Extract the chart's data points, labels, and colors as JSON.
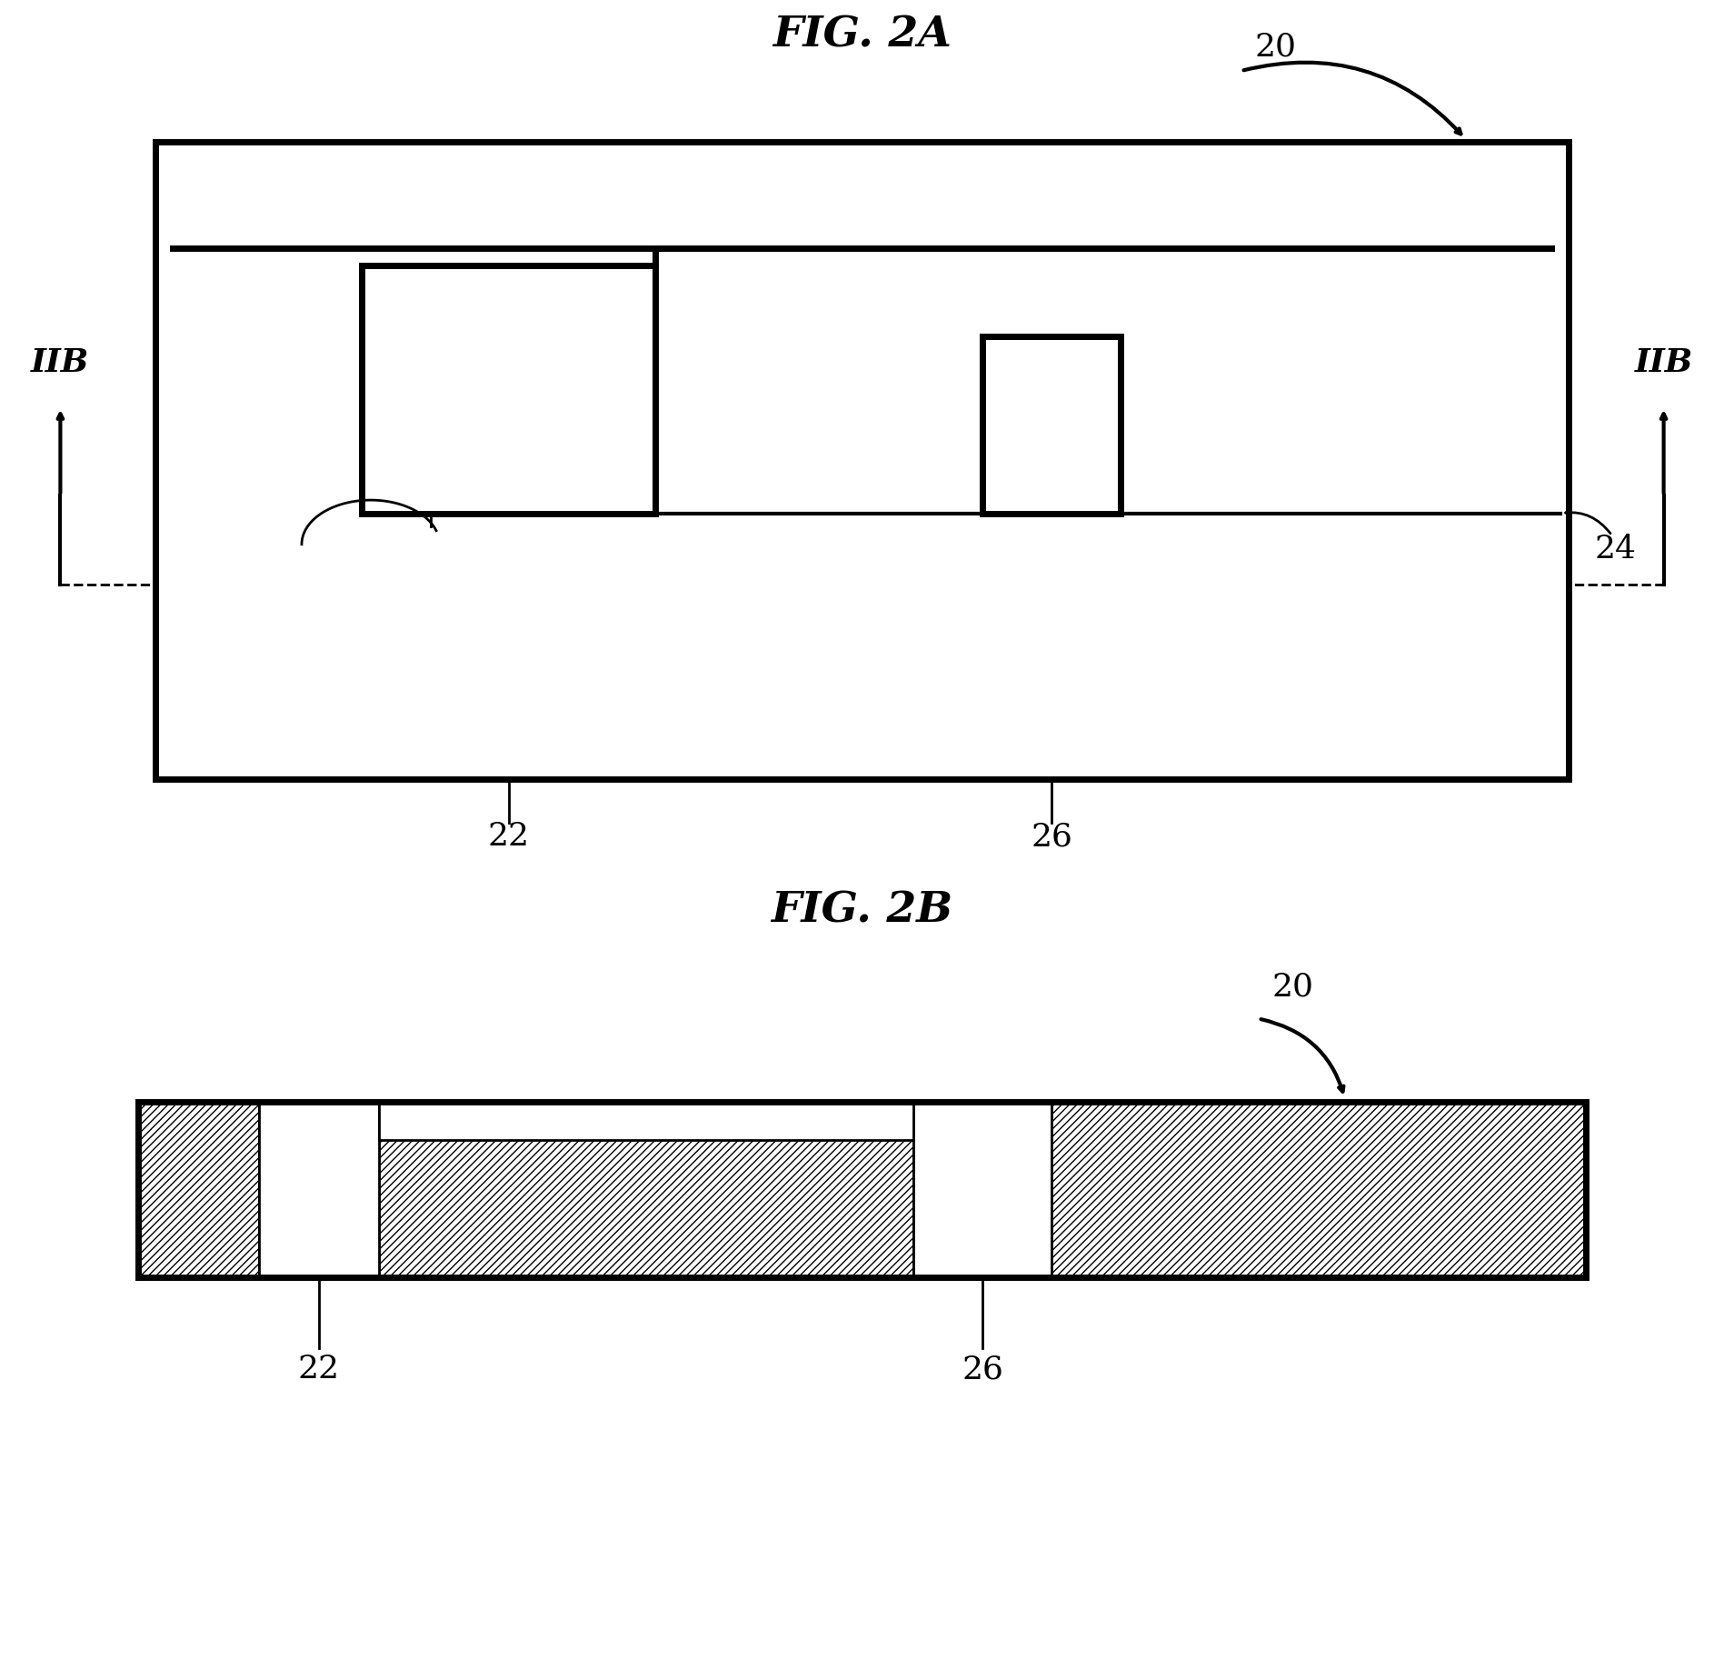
{
  "fig_width": 18.97,
  "fig_height": 18.37,
  "bg_color": "#ffffff",
  "title_2a": "FIG. 2A",
  "title_2b": "FIG. 2B",
  "line_color": "#000000",
  "label_color": "#000000",
  "title_fontsize": 34,
  "annotation_fontsize": 26,
  "iib_fontsize": 26
}
